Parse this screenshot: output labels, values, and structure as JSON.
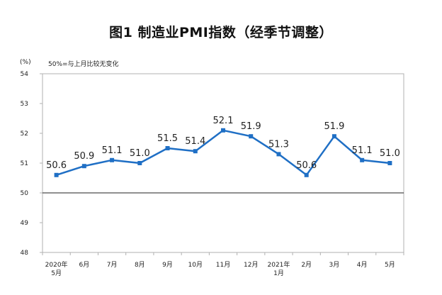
{
  "chart_data": {
    "type": "line",
    "title": "图1 制造业PMI指数（经季节调整）",
    "unit": "(%)",
    "note": "50%=与上月比较无变化",
    "categories": [
      [
        "2020年",
        "5月"
      ],
      [
        "6月"
      ],
      [
        "7月"
      ],
      [
        "8月"
      ],
      [
        "9月"
      ],
      [
        "10月"
      ],
      [
        "11月"
      ],
      [
        "12月"
      ],
      [
        "2021年",
        "1月"
      ],
      [
        "2月"
      ],
      [
        "3月"
      ],
      [
        "4月"
      ],
      [
        "5月"
      ]
    ],
    "series": [
      {
        "values": [
          50.6,
          50.9,
          51.1,
          51.0,
          51.5,
          51.4,
          52.1,
          51.9,
          51.3,
          50.6,
          51.9,
          51.1,
          51.0
        ],
        "labels": [
          "50.6",
          "50.9",
          "51.1",
          "51.0",
          "51.5",
          "51.4",
          "52.1",
          "51.9",
          "51.3",
          "50.6",
          "51.9",
          "51.1",
          "51.0"
        ],
        "color": "#1f6fc5",
        "marker": "square"
      }
    ],
    "ylim": [
      48,
      54
    ],
    "yticks": [
      "54",
      "53",
      "52",
      "51",
      "50",
      "49",
      "48"
    ],
    "grid": false,
    "legend": "none",
    "reference_line": 50
  }
}
